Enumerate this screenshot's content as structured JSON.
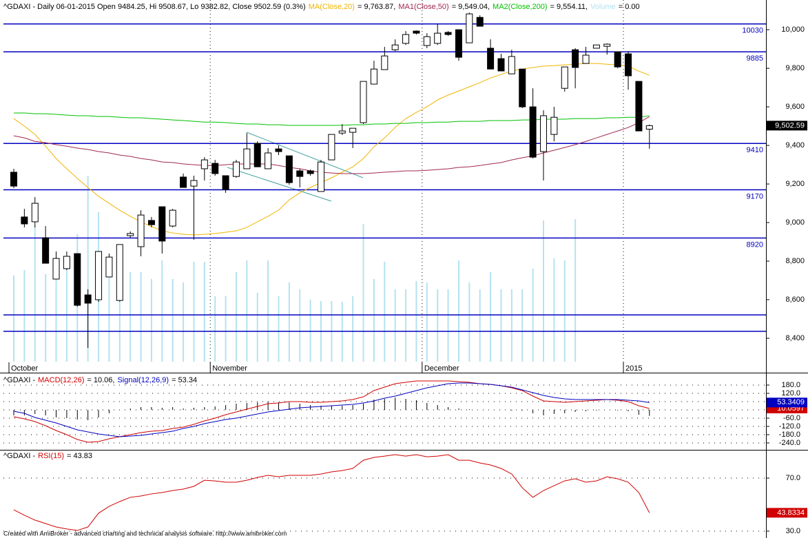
{
  "chart_data": [
    {
      "type": "candlestick",
      "title": "^GDAXI - Daily 06-01-2015 Open 9484.25, Hi 9508.67, Lo 9382.82, Close 9502.59 (0.3%)",
      "categories": [
        "October",
        null,
        null,
        null,
        null,
        null,
        null,
        null,
        null,
        null,
        null,
        null,
        null,
        null,
        null,
        null,
        null,
        null,
        null,
        "November",
        null,
        null,
        null,
        null,
        null,
        null,
        null,
        null,
        null,
        null,
        null,
        null,
        null,
        null,
        null,
        null,
        null,
        null,
        null,
        "December",
        null,
        null,
        null,
        null,
        null,
        null,
        null,
        null,
        null,
        null,
        null,
        null,
        null,
        null,
        null,
        null,
        null,
        null,
        "2015",
        null,
        null
      ],
      "open": [
        9261,
        9029,
        9004,
        8921,
        8707,
        8761,
        8839,
        8625,
        8600,
        8718,
        8596,
        8932,
        8875,
        9011,
        9082,
        8982,
        9236,
        9189,
        9279,
        9307,
        9243,
        9239,
        9279,
        9411,
        9279,
        9382,
        9346,
        9268,
        9268,
        9161,
        9325,
        9464,
        9468,
        9518,
        9718,
        9793,
        9896,
        9929,
        9993,
        9918,
        9929,
        9986,
        10000,
        9932,
        10064,
        9904,
        9850,
        9771,
        9796,
        9600,
        9368,
        9457,
        9696,
        9896,
        9825,
        9904,
        9914,
        9886,
        9875,
        9732,
        9484.25
      ],
      "high": [
        9279,
        9071,
        9132,
        8982,
        8850,
        8850,
        8839,
        8654,
        8850,
        8839,
        8886,
        8954,
        9064,
        9029,
        9082,
        9071,
        9254,
        9243,
        9339,
        9325,
        9243,
        9325,
        9464,
        9421,
        9386,
        9400,
        9346,
        9279,
        9275,
        9325,
        9457,
        9511,
        9489,
        9732,
        9839,
        9911,
        9950,
        9993,
        9996,
        9982,
        10029,
        9993,
        10000,
        10089,
        10075,
        9950,
        9875,
        9896,
        9796,
        9696,
        9582,
        9600,
        9807,
        9904,
        9911,
        9921,
        9929,
        9886,
        9889,
        9732,
        9508.67
      ],
      "low": [
        9179,
        8975,
        8975,
        8789,
        8707,
        8754,
        8564,
        8350,
        8589,
        8718,
        8590,
        8921,
        8825,
        8975,
        8839,
        8975,
        9182,
        8911,
        9218,
        9243,
        9154,
        9232,
        9279,
        9289,
        9279,
        9350,
        9196,
        9182,
        9243,
        9161,
        9325,
        9454,
        9386,
        9511,
        9718,
        9793,
        9889,
        9921,
        9975,
        9904,
        9921,
        9968,
        9839,
        9932,
        10018,
        9796,
        9786,
        9771,
        9593,
        9332,
        9218,
        9421,
        9679,
        9696,
        9825,
        9904,
        9871,
        9800,
        9689,
        9475,
        9382.82
      ],
      "close": [
        9189,
        8993,
        9100,
        8789,
        8814,
        8825,
        8571,
        8582,
        8850,
        8821,
        8886,
        8943,
        9039,
        8989,
        8904,
        9064,
        9182,
        9218,
        9325,
        9254,
        9171,
        9314,
        9382,
        9289,
        9361,
        9368,
        9207,
        9239,
        9254,
        9314,
        9457,
        9475,
        9489,
        9732,
        9796,
        9864,
        9921,
        9975,
        9982,
        9964,
        9982,
        9975,
        9857,
        10082,
        10018,
        9796,
        9786,
        9861,
        9600,
        9339,
        9554,
        9546,
        9807,
        9804,
        9868,
        9921,
        9925,
        9807,
        9761,
        9475,
        9502.59
      ],
      "close_last_label": "9,502.59",
      "up_color": "#ffffff",
      "down_color": "#000000",
      "series": [
        {
          "name": "MA(Close,20)",
          "color": "#f0b400",
          "legend_text": "= 9,763.87,",
          "values": [
            9539,
            9500,
            9457,
            9396,
            9332,
            9279,
            9229,
            9182,
            9136,
            9100,
            9064,
            9032,
            9004,
            8979,
            8957,
            8946,
            8939,
            8936,
            8939,
            8943,
            8950,
            8957,
            8975,
            9004,
            9032,
            9064,
            9118,
            9154,
            9182,
            9207,
            9232,
            9261,
            9289,
            9332,
            9393,
            9439,
            9493,
            9539,
            9571,
            9600,
            9636,
            9661,
            9682,
            9704,
            9725,
            9750,
            9768,
            9786,
            9796,
            9804,
            9811,
            9814,
            9818,
            9821,
            9825,
            9825,
            9821,
            9818,
            9811,
            9785,
            9763.87
          ]
        },
        {
          "name": "MA1(Close,50)",
          "color": "#a0284e",
          "legend_text": "= 9,549.04,",
          "values": [
            9450,
            9439,
            9421,
            9414,
            9404,
            9396,
            9386,
            9379,
            9368,
            9361,
            9350,
            9343,
            9332,
            9325,
            9314,
            9311,
            9304,
            9300,
            9296,
            9296,
            9300,
            9304,
            9304,
            9304,
            9304,
            9296,
            9286,
            9279,
            9268,
            9261,
            9257,
            9254,
            9254,
            9254,
            9257,
            9261,
            9264,
            9268,
            9268,
            9271,
            9275,
            9279,
            9286,
            9289,
            9296,
            9304,
            9311,
            9325,
            9336,
            9346,
            9361,
            9375,
            9389,
            9404,
            9421,
            9439,
            9457,
            9475,
            9493,
            9518,
            9549.04
          ]
        },
        {
          "name": "MA2(Close,200)",
          "color": "#00c000",
          "legend_text": "= 9,554.11,",
          "values": [
            9568,
            9568,
            9564,
            9564,
            9561,
            9557,
            9554,
            9554,
            9550,
            9550,
            9546,
            9543,
            9543,
            9539,
            9536,
            9532,
            9529,
            9525,
            9521,
            9521,
            9518,
            9514,
            9511,
            9511,
            9507,
            9507,
            9504,
            9504,
            9504,
            9504,
            9504,
            9504,
            9507,
            9507,
            9511,
            9511,
            9514,
            9514,
            9518,
            9518,
            9521,
            9521,
            9525,
            9525,
            9525,
            9529,
            9529,
            9529,
            9532,
            9532,
            9536,
            9536,
            9536,
            9539,
            9539,
            9539,
            9543,
            9543,
            9546,
            9546,
            9554.11
          ]
        }
      ],
      "volume": {
        "name": "Volume",
        "color": "#b4e2f0",
        "legend_text": "= 0.00",
        "values": [
          125,
          133,
          197,
          127,
          120,
          153,
          185,
          270,
          217,
          125,
          150,
          130,
          130,
          120,
          147,
          120,
          115,
          145,
          145,
          95,
          95,
          130,
          147,
          100,
          147,
          95,
          115,
          105,
          90,
          88,
          88,
          87,
          95,
          200,
          120,
          145,
          105,
          105,
          117,
          115,
          105,
          105,
          147,
          115,
          105,
          130,
          105,
          105,
          105,
          135,
          205,
          150,
          147,
          207,
          0,
          0,
          0,
          0,
          0,
          0,
          0
        ]
      },
      "hlines": [
        10030,
        9885,
        9410,
        9170,
        8920
      ],
      "hlines_unlabeled": [
        8521,
        8436
      ],
      "hline_color": "#0000c0",
      "ylim": [
        8268,
        10154
      ],
      "yticks": [
        {
          "value": 8400,
          "label": "8,400"
        },
        {
          "value": 8600,
          "label": "8,600"
        },
        {
          "value": 8800,
          "label": "8,800"
        },
        {
          "value": 9000,
          "label": "9,000"
        },
        {
          "value": 9200,
          "label": "9,200"
        },
        {
          "value": 9400,
          "label": "9,400"
        },
        {
          "value": 9600,
          "label": "9,600"
        },
        {
          "value": 9800,
          "label": "9,800"
        },
        {
          "value": 10000,
          "label": "10,000"
        }
      ]
    },
    {
      "type": "line",
      "title": "^GDAXI -",
      "series": [
        {
          "name": "MACD(12,26)",
          "color": "#d00000",
          "legend_text": "= 10.06,",
          "last_label": "10.0597",
          "values": [
            -50,
            -65,
            -85,
            -115,
            -150,
            -180,
            -215,
            -235,
            -230,
            -210,
            -195,
            -180,
            -165,
            -155,
            -150,
            -135,
            -125,
            -105,
            -80,
            -60,
            -35,
            -15,
            5,
            25,
            45,
            50,
            60,
            60,
            55,
            55,
            60,
            65,
            75,
            95,
            140,
            165,
            190,
            200,
            210,
            210,
            210,
            210,
            205,
            200,
            190,
            185,
            175,
            160,
            140,
            100,
            65,
            60,
            55,
            60,
            65,
            70,
            75,
            70,
            60,
            30,
            10.0597
          ]
        },
        {
          "name": "Signal(12,26,9)",
          "color": "#0000c0",
          "legend_text": "= 53.34",
          "last_label": "53.3409",
          "values": [
            -10,
            -25,
            -55,
            -75,
            -95,
            -120,
            -145,
            -160,
            -175,
            -185,
            -195,
            -190,
            -185,
            -175,
            -165,
            -155,
            -135,
            -120,
            -100,
            -85,
            -70,
            -60,
            -45,
            -30,
            -15,
            -5,
            5,
            15,
            20,
            25,
            30,
            35,
            40,
            50,
            65,
            85,
            100,
            120,
            140,
            160,
            175,
            190,
            195,
            195,
            190,
            185,
            175,
            165,
            145,
            125,
            105,
            90,
            80,
            75,
            75,
            75,
            75,
            75,
            70,
            65,
            53.3409
          ]
        }
      ],
      "histogram": {
        "color": "#000000",
        "values": [
          -40,
          -40,
          -30,
          -40,
          -55,
          -60,
          -70,
          -75,
          -55,
          -25,
          0,
          10,
          20,
          20,
          15,
          20,
          10,
          15,
          20,
          25,
          35,
          45,
          50,
          55,
          60,
          55,
          55,
          45,
          35,
          30,
          30,
          30,
          35,
          45,
          75,
          80,
          90,
          80,
          70,
          50,
          35,
          20,
          10,
          5,
          0,
          0,
          0,
          -5,
          -5,
          -25,
          -40,
          -30,
          -25,
          -15,
          -10,
          -5,
          0,
          -5,
          -10,
          -35,
          -43.2812
        ]
      },
      "ylim": [
        -285,
        250
      ],
      "yticks": [
        {
          "value": 180,
          "label": "180.0"
        },
        {
          "value": 120,
          "label": "120.0"
        },
        {
          "value": 60,
          "label": "60.0"
        },
        {
          "value": 0,
          "label": "0.0"
        },
        {
          "value": -60,
          "label": "-60.0"
        },
        {
          "value": -120,
          "label": "-120.0"
        },
        {
          "value": -180,
          "label": "-180.0"
        },
        {
          "value": -240,
          "label": "-240.0"
        }
      ],
      "grid": true
    },
    {
      "type": "line",
      "title": "^GDAXI -",
      "series": [
        {
          "name": "RSI(15)",
          "color": "#d00000",
          "legend_text": "= 43.83",
          "last_label": "43.8334",
          "values": [
            46.1,
            42.0,
            38.3,
            35.7,
            33.1,
            31.6,
            30.5,
            33.1,
            43.5,
            48.7,
            52.3,
            55.5,
            56.5,
            58.1,
            59.1,
            60.6,
            61.7,
            63.8,
            68.4,
            67.9,
            66.9,
            66.9,
            68.4,
            70.5,
            72.1,
            71.0,
            72.1,
            72.1,
            72.1,
            73.1,
            74.7,
            75.7,
            77.3,
            83.5,
            85.6,
            86.6,
            87.7,
            86.6,
            87.7,
            86.1,
            86.6,
            87.7,
            83.5,
            83.5,
            81.4,
            79.9,
            77.3,
            73.1,
            62.7,
            55.5,
            60.6,
            64.3,
            67.9,
            69.5,
            66.9,
            67.9,
            71.0,
            69.5,
            66.9,
            59.1,
            43.8334
          ]
        }
      ],
      "ylim": [
        24.8,
        90.3
      ],
      "yticks": [
        {
          "value": 70,
          "label": "70.0"
        },
        {
          "value": 30,
          "label": "30.0"
        }
      ],
      "grid": true
    }
  ],
  "footer": "Created with AmiBroker - advanced charting and technical analysis software. http://www.amibroker.com"
}
